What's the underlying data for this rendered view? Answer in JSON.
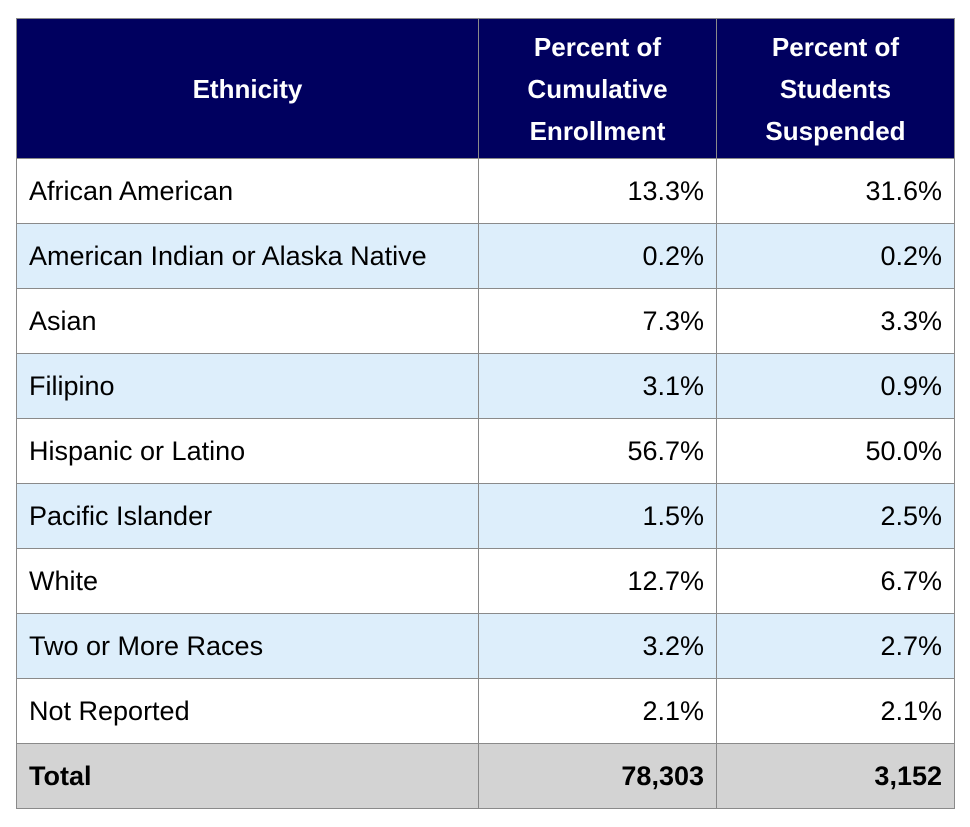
{
  "table": {
    "headers": {
      "ethnicity": "Ethnicity",
      "enrollment": [
        "Percent of",
        "Cumulative",
        "Enrollment"
      ],
      "suspended": [
        "Percent of",
        "Students",
        "Suspended"
      ]
    },
    "rows": [
      {
        "ethnicity": "African American",
        "enrollment": "13.3%",
        "suspended": "31.6%"
      },
      {
        "ethnicity": "American Indian or Alaska Native",
        "enrollment": "0.2%",
        "suspended": "0.2%"
      },
      {
        "ethnicity": "Asian",
        "enrollment": "7.3%",
        "suspended": "3.3%"
      },
      {
        "ethnicity": "Filipino",
        "enrollment": "3.1%",
        "suspended": "0.9%"
      },
      {
        "ethnicity": "Hispanic or Latino",
        "enrollment": "56.7%",
        "suspended": "50.0%"
      },
      {
        "ethnicity": "Pacific Islander",
        "enrollment": "1.5%",
        "suspended": "2.5%"
      },
      {
        "ethnicity": "White",
        "enrollment": "12.7%",
        "suspended": "6.7%"
      },
      {
        "ethnicity": "Two or More Races",
        "enrollment": "3.2%",
        "suspended": "2.7%"
      },
      {
        "ethnicity": "Not Reported",
        "enrollment": "2.1%",
        "suspended": "2.1%"
      }
    ],
    "total": {
      "label": "Total",
      "enrollment": "78,303",
      "suspended": "3,152"
    }
  },
  "colors": {
    "header_bg": "#00005f",
    "row_alt_bg": "#ddeefb",
    "total_bg": "#d3d3d3"
  }
}
